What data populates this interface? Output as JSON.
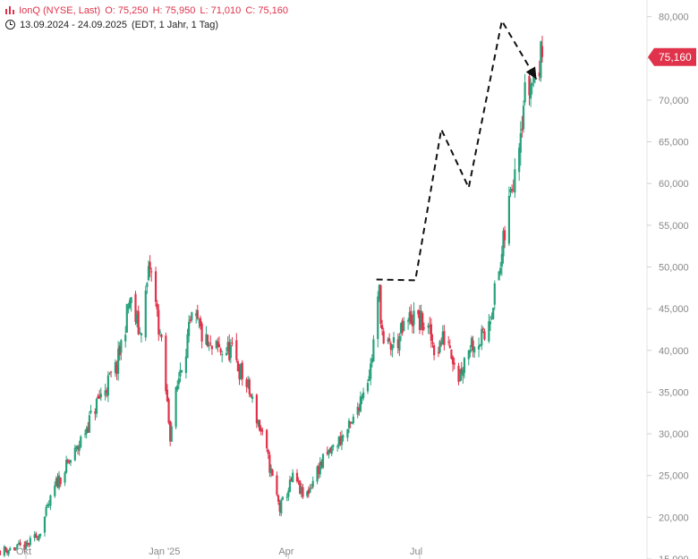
{
  "header": {
    "name": "IonQ (NYSE, Last)",
    "open": "O: 75,250",
    "high": "H: 75,950",
    "low": "L: 71,010",
    "close": "C: 75,160",
    "range": "13.09.2024 - 24.09.2025",
    "meta": "(EDT, 1 Jahr, 1 Tag)"
  },
  "colors": {
    "up": "#26a17b",
    "down": "#e0324a",
    "badge": "#e0324a",
    "axis_text": "#888888"
  },
  "chart_data": {
    "type": "candlestick",
    "ylim": [
      15000,
      82000
    ],
    "y_ticks": [
      15000,
      20000,
      25000,
      30000,
      35000,
      40000,
      45000,
      50000,
      55000,
      60000,
      65000,
      70000,
      75000,
      80000
    ],
    "y_tick_labels": [
      "15,000",
      "20,000",
      "25,000",
      "30,000",
      "35,000",
      "40,000",
      "45,000",
      "50,000",
      "55,000",
      "60,000",
      "65,000",
      "70,000",
      "75,000",
      "80,000"
    ],
    "x_ticks": [
      {
        "date": "2024-10-01",
        "label": "Okt"
      },
      {
        "date": "2025-01-01",
        "label": "Jan '25"
      },
      {
        "date": "2025-04-01",
        "label": "Apr"
      },
      {
        "date": "2025-07-01",
        "label": "Jul"
      }
    ],
    "xlim": [
      "2024-09-13",
      "2025-12-05"
    ],
    "grid": false,
    "last_price_label": "75,160",
    "last_price": 75160,
    "trend_path": [
      {
        "date": "2025-06-01",
        "value": 48500
      },
      {
        "date": "2025-06-28",
        "value": 48400
      },
      {
        "date": "2025-07-16",
        "value": 66500
      },
      {
        "date": "2025-08-04",
        "value": 59500
      },
      {
        "date": "2025-08-27",
        "value": 79500
      },
      {
        "date": "2025-09-20",
        "value": 72500
      }
    ],
    "anchors": [
      {
        "date": "2024-09-13",
        "value": 16000
      },
      {
        "date": "2024-10-01",
        "value": 16500
      },
      {
        "date": "2024-10-10",
        "value": 18000
      },
      {
        "date": "2024-10-22",
        "value": 24000
      },
      {
        "date": "2024-11-05",
        "value": 28000
      },
      {
        "date": "2024-11-20",
        "value": 34000
      },
      {
        "date": "2024-12-03",
        "value": 38000
      },
      {
        "date": "2024-12-12",
        "value": 46000
      },
      {
        "date": "2024-12-19",
        "value": 42000
      },
      {
        "date": "2024-12-26",
        "value": 50000
      },
      {
        "date": "2025-01-02",
        "value": 42000
      },
      {
        "date": "2025-01-09",
        "value": 30000
      },
      {
        "date": "2025-01-16",
        "value": 38000
      },
      {
        "date": "2025-01-25",
        "value": 44000
      },
      {
        "date": "2025-02-05",
        "value": 40000
      },
      {
        "date": "2025-02-20",
        "value": 40000
      },
      {
        "date": "2025-03-05",
        "value": 35000
      },
      {
        "date": "2025-03-15",
        "value": 29000
      },
      {
        "date": "2025-03-26",
        "value": 21000
      },
      {
        "date": "2025-04-05",
        "value": 25000
      },
      {
        "date": "2025-04-12",
        "value": 22000
      },
      {
        "date": "2025-04-22",
        "value": 26000
      },
      {
        "date": "2025-05-05",
        "value": 29000
      },
      {
        "date": "2025-05-15",
        "value": 31000
      },
      {
        "date": "2025-05-22",
        "value": 35000
      },
      {
        "date": "2025-05-28",
        "value": 38000
      },
      {
        "date": "2025-06-03",
        "value": 47000
      },
      {
        "date": "2025-06-06",
        "value": 40000
      },
      {
        "date": "2025-06-15",
        "value": 41000
      },
      {
        "date": "2025-06-25",
        "value": 44000
      },
      {
        "date": "2025-07-05",
        "value": 43000
      },
      {
        "date": "2025-07-12",
        "value": 40000
      },
      {
        "date": "2025-07-20",
        "value": 42000
      },
      {
        "date": "2025-07-28",
        "value": 37000
      },
      {
        "date": "2025-08-05",
        "value": 41000
      },
      {
        "date": "2025-08-15",
        "value": 41500
      },
      {
        "date": "2025-08-26",
        "value": 50000
      },
      {
        "date": "2025-09-03",
        "value": 60000
      },
      {
        "date": "2025-09-11",
        "value": 70000
      },
      {
        "date": "2025-09-24",
        "value": 75160
      }
    ]
  }
}
